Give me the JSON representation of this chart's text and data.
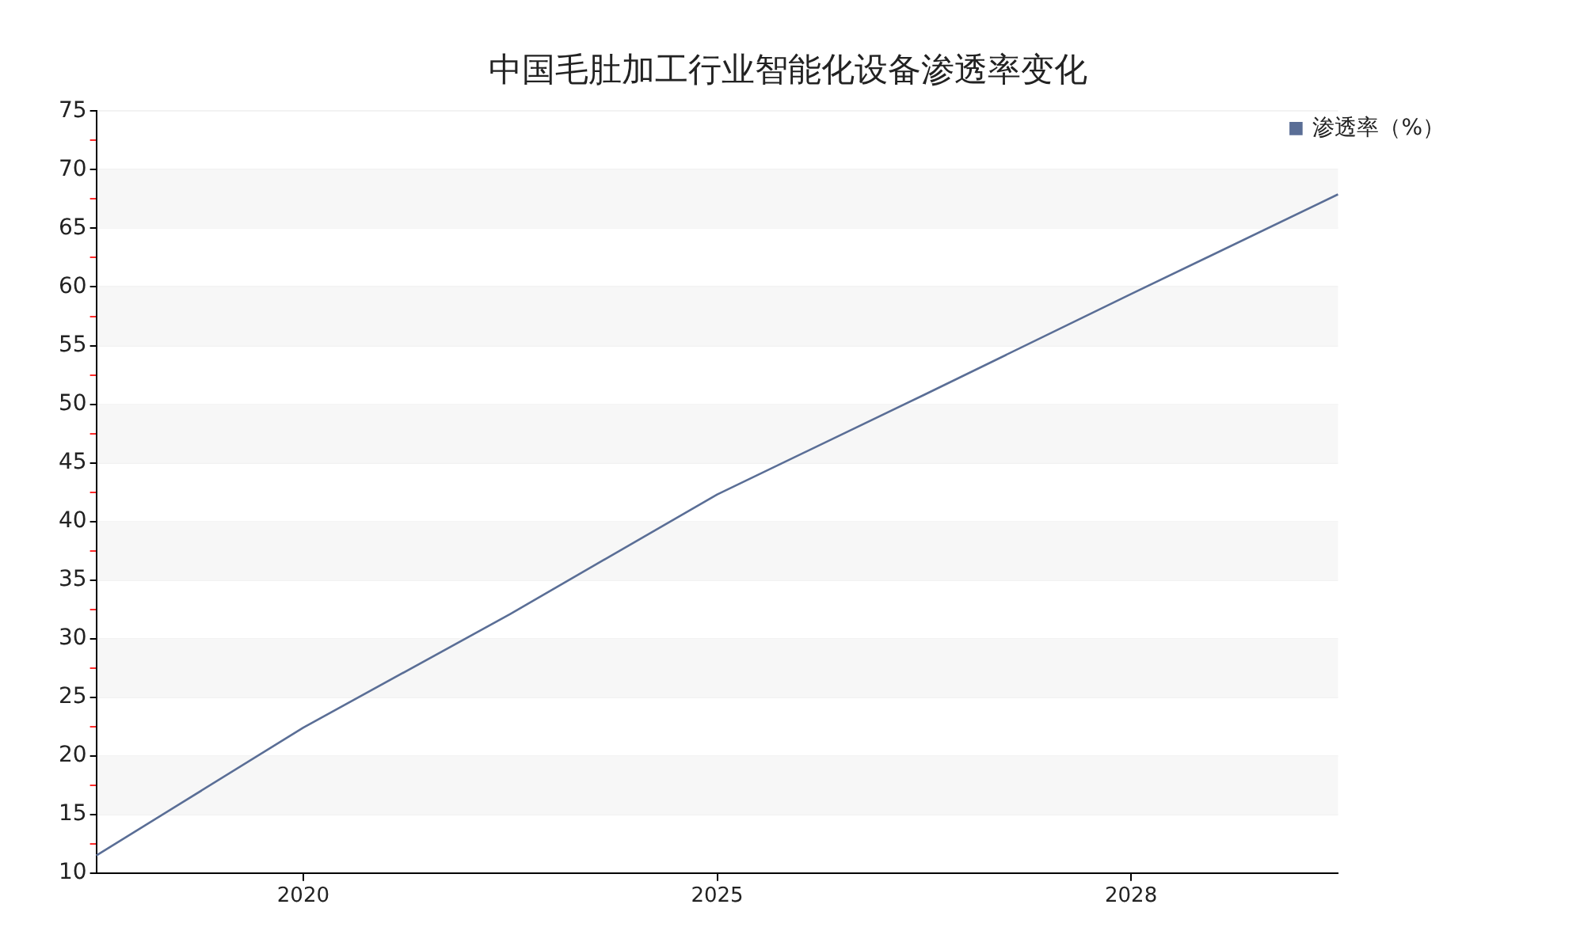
{
  "chart_data": {
    "type": "line",
    "title": "中国毛肚加工行业智能化设备渗透率变化",
    "categories": [
      null,
      "2020",
      null,
      "2025",
      null,
      "2028",
      null
    ],
    "series": [
      {
        "name": "渗透率（%）",
        "color": "#5a6e96",
        "values": [
          11.5,
          22.4,
          32.1,
          42.3,
          50.8,
          59.4,
          67.9
        ]
      }
    ],
    "ylim": [
      10,
      75
    ],
    "yticks": [
      10,
      {
        "value": 12.5,
        "label": null
      },
      15,
      {
        "value": 17.5,
        "label": null
      },
      20,
      {
        "value": 22.5,
        "label": null
      },
      25,
      {
        "value": 27.5,
        "label": null
      },
      30,
      {
        "value": 32.5,
        "label": null
      },
      35,
      {
        "value": 37.5,
        "label": null
      },
      40,
      {
        "value": 42.5,
        "label": null
      },
      45,
      {
        "value": 47.5,
        "label": null
      },
      50,
      {
        "value": 52.5,
        "label": null
      },
      55,
      {
        "value": 57.5,
        "label": null
      },
      60,
      {
        "value": 62.5,
        "label": null
      },
      65,
      {
        "value": 67.5,
        "label": null
      },
      70,
      {
        "value": 72.5,
        "label": null
      },
      75
    ],
    "grid": "y",
    "legend": "top right"
  }
}
